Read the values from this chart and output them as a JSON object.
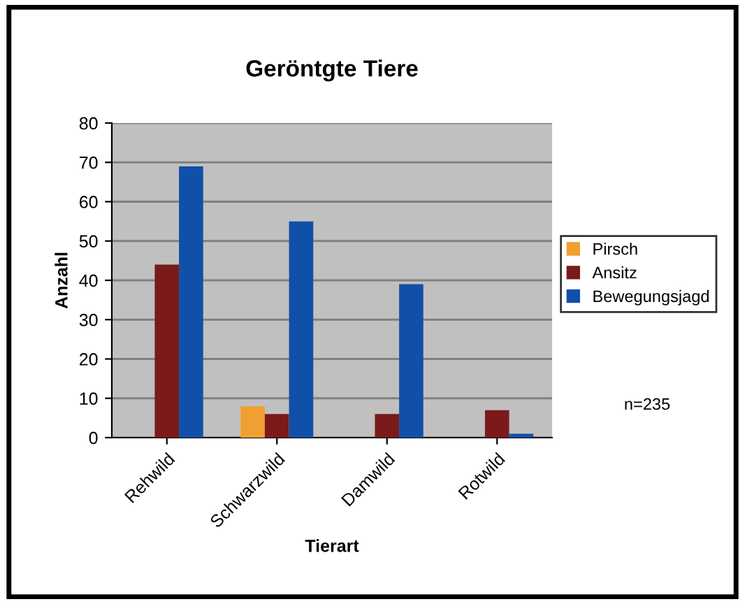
{
  "chart_data": {
    "type": "bar",
    "title": "Geröntgte Tiere",
    "xlabel": "Tierart",
    "ylabel": "Anzahl",
    "categories": [
      "Rehwild",
      "Schwarzwild",
      "Damwild",
      "Rotwild"
    ],
    "series": [
      {
        "name": "Pirsch",
        "color": "#f0a030",
        "values": [
          0,
          8,
          0,
          0
        ]
      },
      {
        "name": "Ansitz",
        "color": "#7a1a1a",
        "values": [
          44,
          6,
          6,
          7
        ]
      },
      {
        "name": "Bewegungsjagd",
        "color": "#1050a8",
        "values": [
          69,
          55,
          39,
          1
        ]
      }
    ],
    "ylim": [
      0,
      80
    ],
    "yticks": [
      0,
      10,
      20,
      30,
      40,
      50,
      60,
      70,
      80
    ],
    "grid": "y",
    "legend": "right",
    "annotations": [
      "n=235"
    ]
  }
}
